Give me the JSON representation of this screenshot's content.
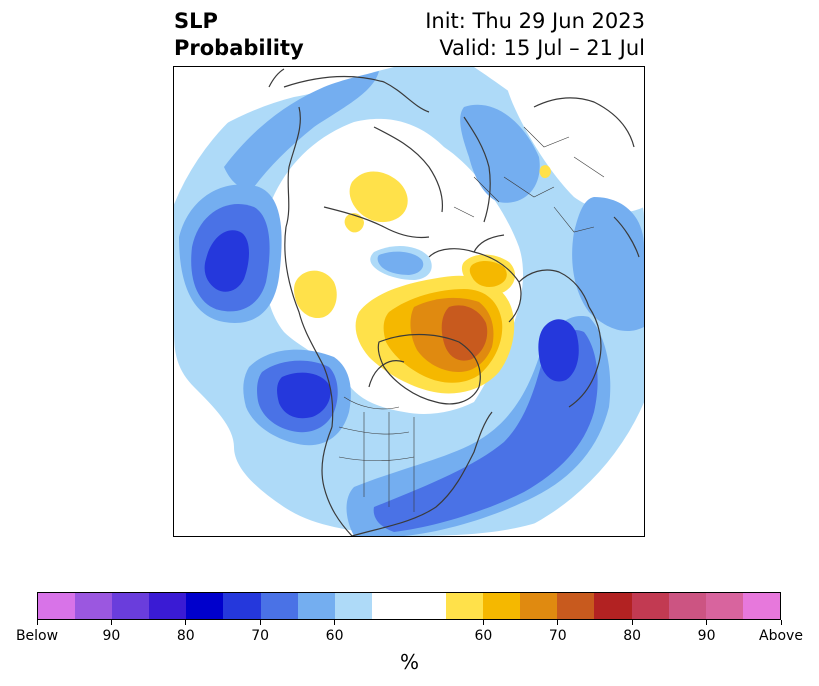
{
  "title": {
    "left_line1": "SLP",
    "left_line2": "Probability",
    "right_line1": "Init: Thu 29 Jun 2023",
    "right_line2": "Valid: 15 Jul – 21 Jul"
  },
  "colorbar": {
    "unit": "%",
    "colors": [
      "#d873e8",
      "#9b57e0",
      "#6a3ddc",
      "#3a1bd4",
      "#0000cc",
      "#2538dc",
      "#4a72e6",
      "#74aef0",
      "#aedaf8",
      "#ffffff",
      "#ffffff",
      "#ffe14a",
      "#f5b800",
      "#e08a10",
      "#c85a1e",
      "#b22222",
      "#c23a52",
      "#cc5482",
      "#d8649e",
      "#e778dc"
    ],
    "tick_labels": [
      "Below",
      "90",
      "80",
      "70",
      "60",
      "60",
      "70",
      "80",
      "90",
      "Above"
    ]
  },
  "map": {
    "region": "Northern Hemisphere polar stereographic",
    "colors": {
      "blue_light": "#aedaf8",
      "blue_mid": "#74aef0",
      "blue_med": "#4a72e6",
      "blue_dark": "#2538dc",
      "blue_deep": "#0000cc",
      "yellow": "#ffe14a",
      "gold": "#f5b800",
      "orange": "#e08a10",
      "rust": "#c85a1e",
      "coast": "#3a3a3a"
    }
  }
}
